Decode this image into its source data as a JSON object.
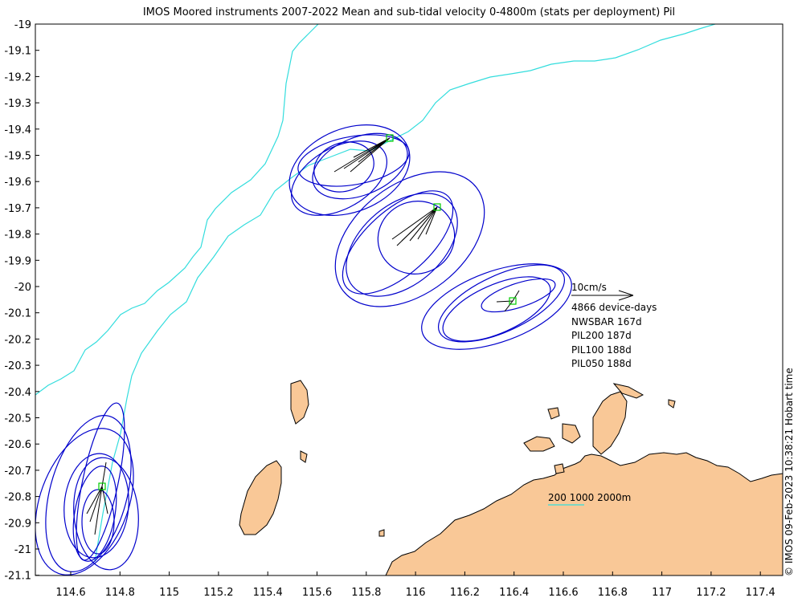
{
  "title": "IMOS Moored instruments 2007-2022 Mean and sub-tidal velocity 0-4800m (stats per deployment) Pil",
  "timestamp": "© IMOS 09-Feb-2023 10:38:21 Hobart time",
  "xaxis": {
    "ticks": [
      "114.6",
      "114.8",
      "115",
      "115.2",
      "115.4",
      "115.6",
      "115.8",
      "116",
      "116.2",
      "116.4",
      "116.6",
      "116.8",
      "117",
      "117.2",
      "117.4"
    ]
  },
  "yaxis": {
    "ticks": [
      "-19",
      "-19.1",
      "-19.2",
      "-19.3",
      "-19.4",
      "-19.5",
      "-19.6",
      "-19.7",
      "-19.8",
      "-19.9",
      "-20",
      "-20.1",
      "-20.2",
      "-20.3",
      "-20.4",
      "-20.5",
      "-20.6",
      "-20.7",
      "-20.8",
      "-20.9",
      "-21",
      "-21.1"
    ]
  },
  "legend": {
    "scale_label": "10cm/s",
    "device_days": "4866 device-days",
    "deployments": [
      "NWSBAR 167d",
      "PIL200 187d",
      "PIL100 188d",
      "PIL050 188d"
    ]
  },
  "contour_label": "200 1000 2000m",
  "colors": {
    "land": "#f9c897",
    "ellipse": "#0000cc",
    "isobath": "#33dddd",
    "site": "#00cc00",
    "arrow": "#000000"
  },
  "moorings": [
    {
      "name": "NWSBAR",
      "lon": 114.75,
      "lat": -20.76
    },
    {
      "name": "PIL200",
      "lon": 115.91,
      "lat": -19.43
    },
    {
      "name": "PIL100",
      "lon": 116.11,
      "lat": -19.7
    },
    {
      "name": "PIL050",
      "lon": 116.42,
      "lat": -20.05
    }
  ]
}
